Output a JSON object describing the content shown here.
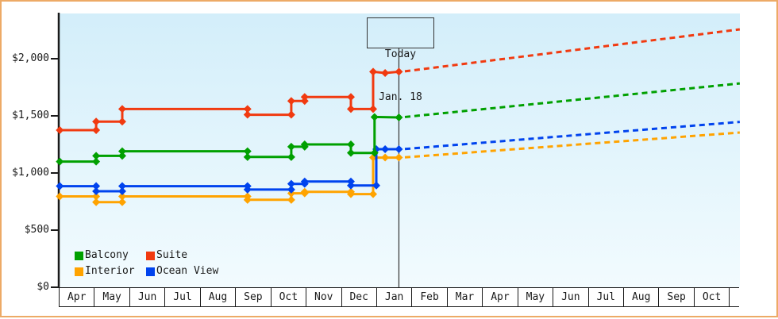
{
  "window": {
    "border_color": "#edaa66"
  },
  "legend": {
    "items": [
      {
        "label": "Balcony",
        "color": "#00a000"
      },
      {
        "label": "Suite",
        "color": "#f13a10"
      },
      {
        "label": "Interior",
        "color": "#ffa300"
      },
      {
        "label": "Ocean View",
        "color": "#0043ee"
      }
    ]
  },
  "annotation_box": {
    "line1": "Today",
    "line2": "Jan. 18"
  },
  "chart_data": {
    "type": "line",
    "title": "",
    "xlabel": "",
    "ylabel": "",
    "description": "Cabin price history (solid step lines with diamond markers) and dashed price forecast after the Today Jan. 18 marker",
    "y_axis": {
      "tick_labels": [
        "$0",
        "$500",
        "$1,000",
        "$1,500",
        "$2,000"
      ],
      "tick_values": [
        0,
        500,
        1000,
        1500,
        2000
      ],
      "ylim": [
        0,
        2400
      ],
      "grid": false
    },
    "x_axis": {
      "months": [
        "Apr",
        "May",
        "Jun",
        "Jul",
        "Aug",
        "Sep",
        "Oct",
        "Nov",
        "Dec",
        "Jan",
        "Feb",
        "Mar",
        "Apr",
        "May",
        "Jun",
        "Jul",
        "Aug",
        "Sep",
        "Oct"
      ]
    },
    "today_marker": {
      "month_x": 9.61,
      "label_line1": "Today",
      "label_line2": "Jan. 18"
    },
    "series": [
      {
        "name": "Interior",
        "color": "#ffa300",
        "points": [
          [
            0,
            795
          ],
          [
            1.03,
            795
          ],
          [
            1.03,
            745
          ],
          [
            1.77,
            745
          ],
          [
            1.77,
            795
          ],
          [
            5.32,
            795
          ],
          [
            5.32,
            765
          ],
          [
            6.56,
            765
          ],
          [
            6.56,
            822
          ],
          [
            6.94,
            822
          ],
          [
            6.94,
            835
          ],
          [
            8.25,
            835
          ],
          [
            8.25,
            815
          ],
          [
            8.88,
            815
          ],
          [
            8.88,
            1135
          ],
          [
            9.22,
            1135
          ],
          [
            9.61,
            1135
          ]
        ],
        "forecast": {
          "x": [
            9.78,
            19.27
          ],
          "values": [
            1137,
            1354
          ]
        }
      },
      {
        "name": "Ocean View",
        "color": "#0043ee",
        "points": [
          [
            0,
            885
          ],
          [
            1.03,
            885
          ],
          [
            1.03,
            840
          ],
          [
            1.77,
            840
          ],
          [
            1.77,
            885
          ],
          [
            5.32,
            885
          ],
          [
            5.32,
            855
          ],
          [
            6.56,
            855
          ],
          [
            6.56,
            905
          ],
          [
            6.94,
            905
          ],
          [
            6.94,
            925
          ],
          [
            8.25,
            925
          ],
          [
            8.25,
            891
          ],
          [
            8.97,
            891
          ],
          [
            8.97,
            1208
          ],
          [
            9.22,
            1208
          ],
          [
            9.61,
            1208
          ]
        ],
        "forecast": {
          "x": [
            9.78,
            19.27
          ],
          "values": [
            1210,
            1447
          ]
        }
      },
      {
        "name": "Balcony",
        "color": "#00a000",
        "points": [
          [
            0,
            1100
          ],
          [
            1.03,
            1100
          ],
          [
            1.03,
            1150
          ],
          [
            1.77,
            1150
          ],
          [
            1.77,
            1190
          ],
          [
            5.32,
            1190
          ],
          [
            5.32,
            1140
          ],
          [
            6.56,
            1140
          ],
          [
            6.56,
            1230
          ],
          [
            6.94,
            1230
          ],
          [
            6.94,
            1250
          ],
          [
            8.25,
            1250
          ],
          [
            8.25,
            1176
          ],
          [
            8.92,
            1176
          ],
          [
            8.92,
            1490
          ],
          [
            9.61,
            1486
          ]
        ],
        "forecast": {
          "x": [
            9.78,
            19.27
          ],
          "values": [
            1490,
            1784
          ]
        }
      },
      {
        "name": "Suite",
        "color": "#f13a10",
        "points": [
          [
            0,
            1375
          ],
          [
            1.03,
            1375
          ],
          [
            1.03,
            1450
          ],
          [
            1.77,
            1450
          ],
          [
            1.77,
            1560
          ],
          [
            5.32,
            1560
          ],
          [
            5.32,
            1510
          ],
          [
            6.56,
            1510
          ],
          [
            6.56,
            1630
          ],
          [
            6.94,
            1630
          ],
          [
            6.94,
            1665
          ],
          [
            8.25,
            1665
          ],
          [
            8.25,
            1560
          ],
          [
            8.88,
            1560
          ],
          [
            8.88,
            1886
          ],
          [
            9.22,
            1875
          ],
          [
            9.61,
            1886
          ]
        ],
        "forecast": {
          "x": [
            9.78,
            19.27
          ],
          "values": [
            1890,
            2257
          ]
        }
      }
    ]
  }
}
